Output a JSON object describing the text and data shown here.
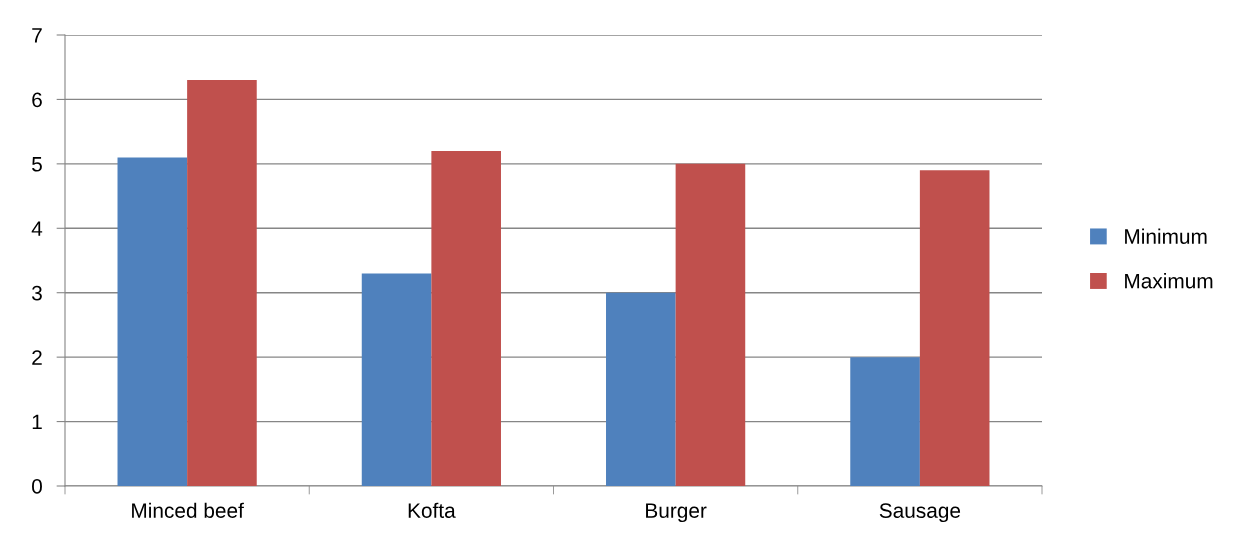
{
  "chart_data": {
    "type": "bar",
    "categories": [
      "Minced beef",
      "Kofta",
      "Burger",
      "Sausage"
    ],
    "series": [
      {
        "name": "Minimum",
        "color": "#4f81bd",
        "values": [
          5.1,
          3.3,
          3.0,
          2.0
        ]
      },
      {
        "name": "Maximum",
        "color": "#c0504d",
        "values": [
          6.3,
          5.2,
          5.0,
          4.9
        ]
      }
    ],
    "ylim": [
      0,
      7
    ],
    "yticks": [
      0,
      1,
      2,
      3,
      4,
      5,
      6,
      7
    ],
    "grid": "y",
    "legend": "right"
  }
}
